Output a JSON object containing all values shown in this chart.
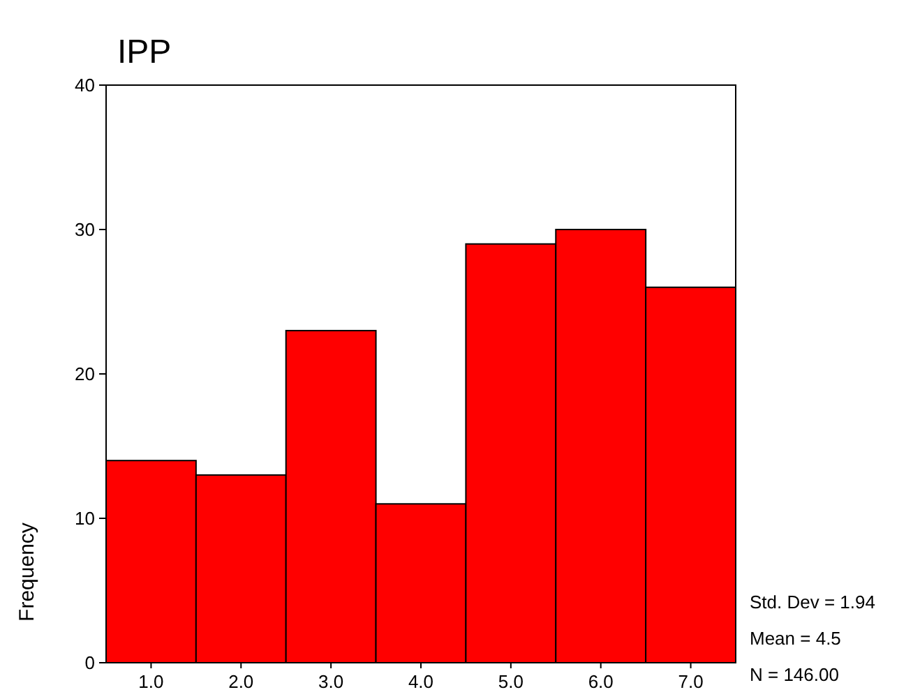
{
  "chart_data": {
    "type": "histogram",
    "title": "IPP",
    "ylabel": "Frequency",
    "bins": [
      0.5,
      1.5,
      2.5,
      3.5,
      4.5,
      5.5,
      6.5,
      7.5
    ],
    "values": [
      14,
      13,
      23,
      11,
      29,
      30,
      26
    ],
    "color": "#ff0000",
    "xlim": [
      0.5,
      7.5
    ],
    "xticks": [
      {
        "value": 1,
        "label": "1.0"
      },
      {
        "value": 2,
        "label": "2.0"
      },
      {
        "value": 3,
        "label": "3.0"
      },
      {
        "value": 4,
        "label": "4.0"
      },
      {
        "value": 5,
        "label": "5.0"
      },
      {
        "value": 6,
        "label": "6.0"
      },
      {
        "value": 7,
        "label": "7.0"
      }
    ],
    "ylim": [
      0,
      40
    ],
    "yticks": [
      0,
      10,
      20,
      30,
      40
    ],
    "annotations": [
      "Std. Dev = 1.94",
      "Mean = 4.5",
      "N = 146.00"
    ]
  }
}
